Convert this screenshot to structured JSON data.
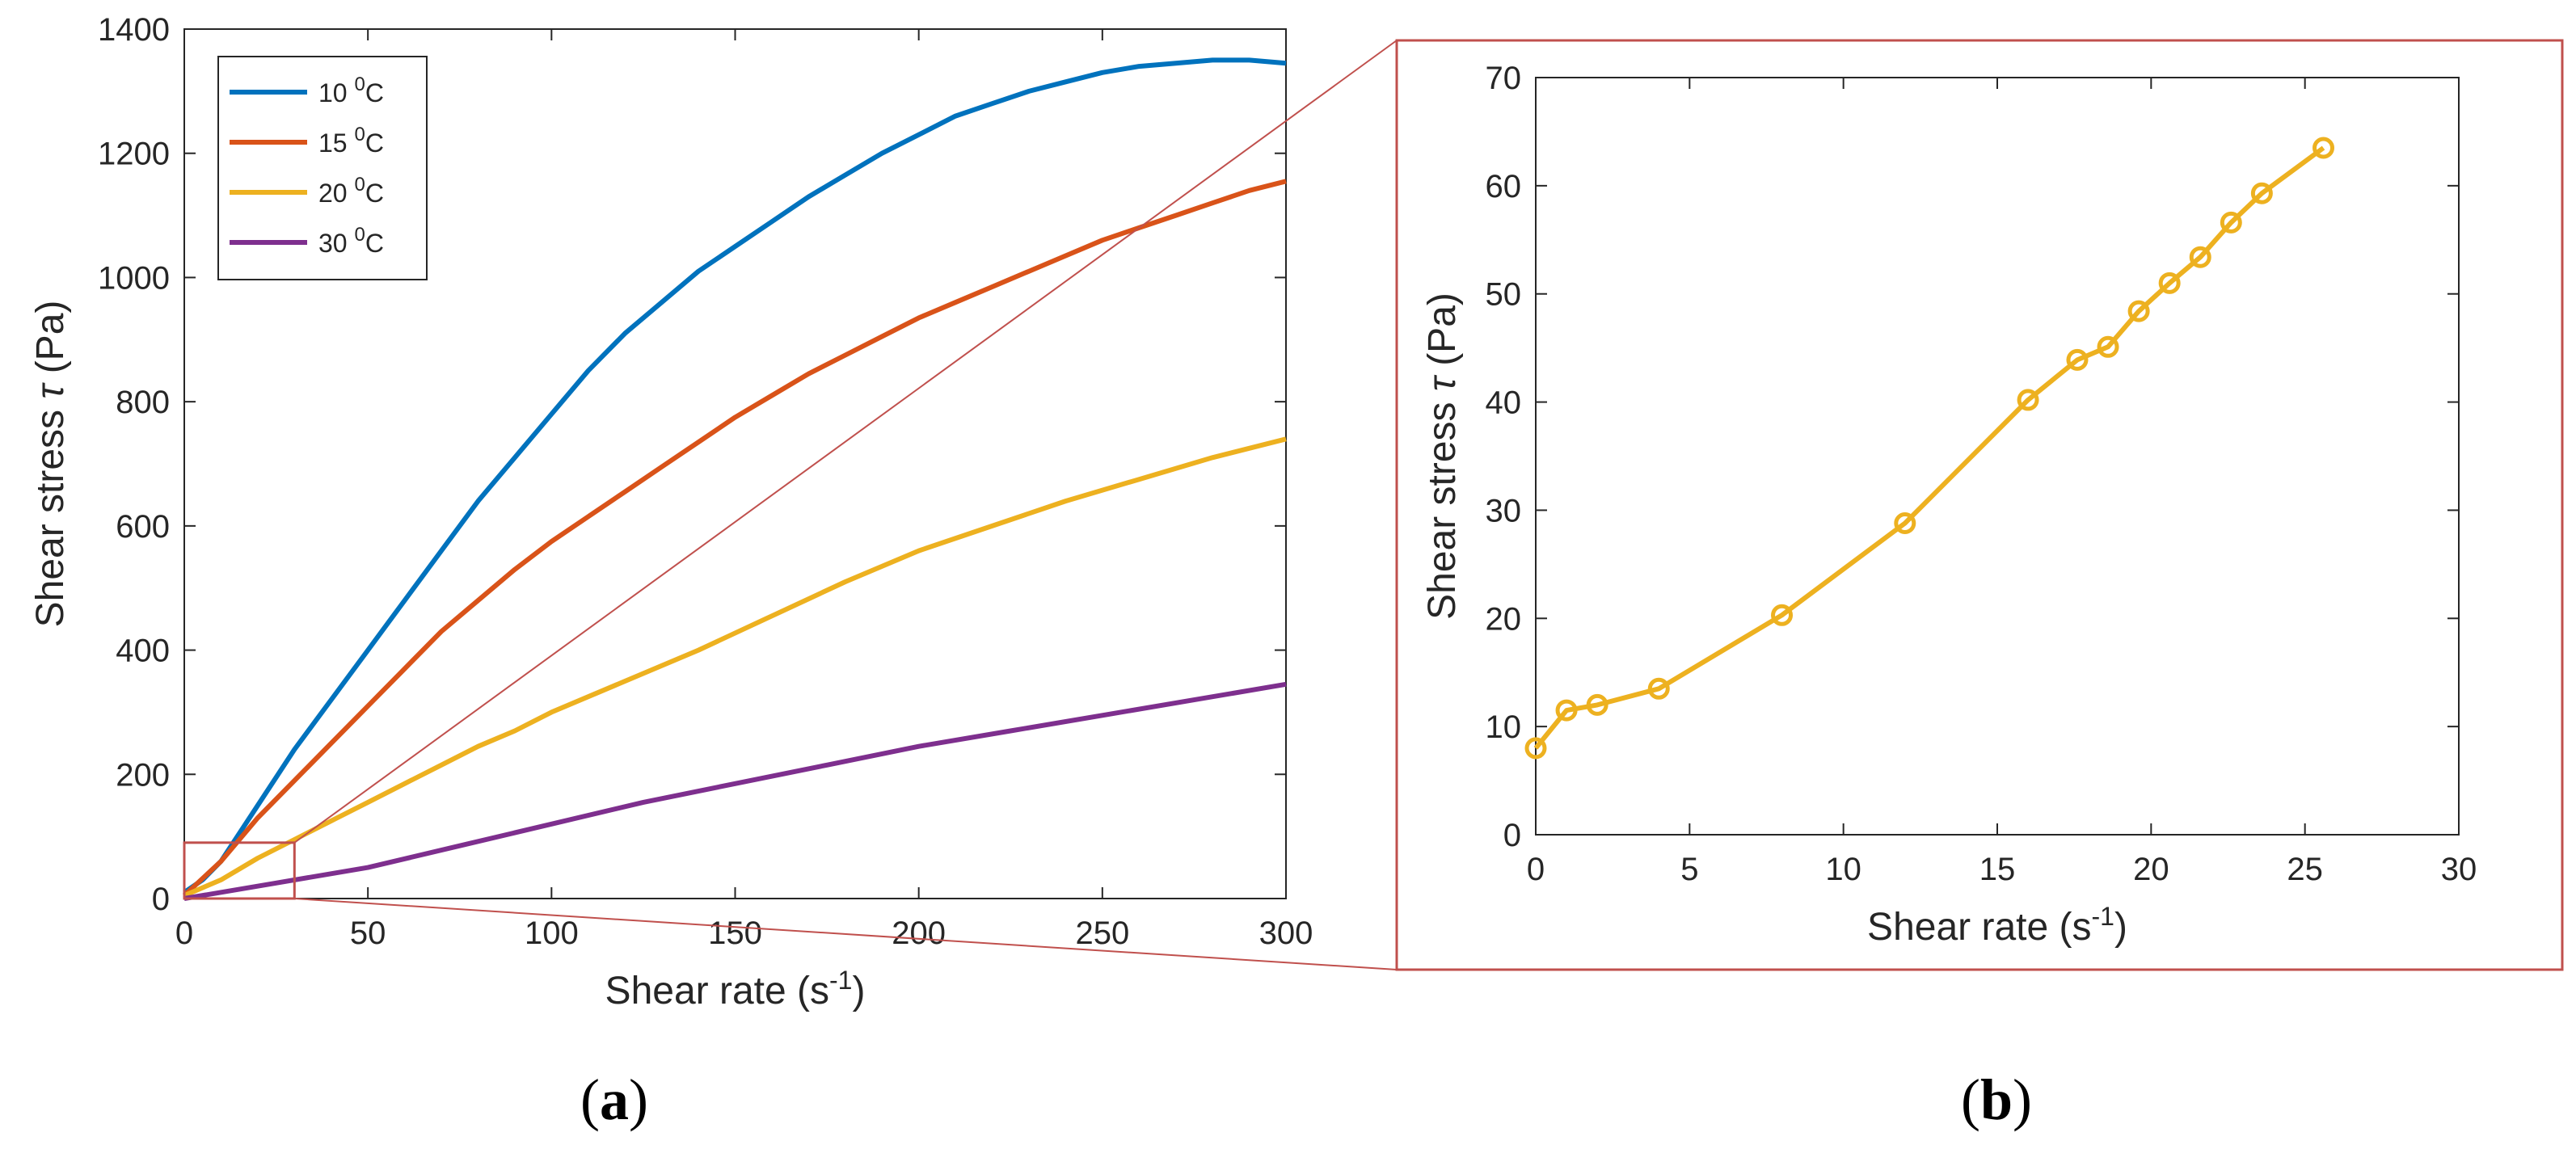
{
  "colors": {
    "series_10c": "#0072BD",
    "series_15c": "#D95319",
    "series_20c": "#EDB120",
    "series_30c": "#7E2F8E",
    "zoom": "#C0504D",
    "axis": "#262626"
  },
  "panel_labels": {
    "a": {
      "open": "(",
      "letter": "a",
      "close": ")"
    },
    "b": {
      "open": "(",
      "letter": "b",
      "close": ")"
    }
  },
  "chart_data": [
    {
      "id": "a",
      "type": "line",
      "xlabel": {
        "main": "Shear rate (s",
        "sup": "-1",
        "end": ")"
      },
      "ylabel": {
        "main": "Shear stress ",
        "sym": "τ",
        "end": " (Pa)"
      },
      "xlim": [
        0,
        300
      ],
      "ylim": [
        0,
        1400
      ],
      "xticks": [
        "0",
        "50",
        "100",
        "150",
        "200",
        "250",
        "300"
      ],
      "yticks": [
        "0",
        "200",
        "400",
        "600",
        "800",
        "1000",
        "1200",
        "1400"
      ],
      "grid": false,
      "legend_position": "top-left",
      "zoom_region": {
        "x": [
          0,
          30
        ],
        "y": [
          0,
          90
        ]
      },
      "series": [
        {
          "name": "10 °C",
          "label_main": "10 ",
          "label_sup": "0",
          "label_end": "C",
          "color_key": "series_10c",
          "x": [
            0,
            5,
            10,
            20,
            30,
            40,
            50,
            60,
            70,
            80,
            90,
            100,
            110,
            120,
            130,
            140,
            150,
            160,
            170,
            180,
            190,
            200,
            210,
            220,
            230,
            240,
            250,
            260,
            270,
            280,
            290,
            300
          ],
          "y": [
            10,
            30,
            60,
            150,
            240,
            320,
            400,
            480,
            560,
            640,
            710,
            780,
            850,
            910,
            960,
            1010,
            1050,
            1090,
            1130,
            1165,
            1200,
            1230,
            1260,
            1280,
            1300,
            1315,
            1330,
            1340,
            1345,
            1350,
            1350,
            1345
          ]
        },
        {
          "name": "15 °C",
          "label_main": "15 ",
          "label_sup": "0",
          "label_end": "C",
          "color_key": "series_15c",
          "x": [
            0,
            10,
            20,
            30,
            40,
            50,
            60,
            70,
            80,
            90,
            100,
            110,
            120,
            130,
            140,
            150,
            160,
            170,
            180,
            190,
            200,
            210,
            220,
            230,
            240,
            250,
            260,
            270,
            280,
            290,
            300
          ],
          "y": [
            5,
            60,
            130,
            190,
            250,
            310,
            370,
            430,
            480,
            530,
            575,
            615,
            655,
            695,
            735,
            775,
            810,
            845,
            875,
            905,
            935,
            960,
            985,
            1010,
            1035,
            1060,
            1080,
            1100,
            1120,
            1140,
            1155
          ]
        },
        {
          "name": "20 °C",
          "label_main": "20 ",
          "label_sup": "0",
          "label_end": "C",
          "color_key": "series_20c",
          "x": [
            0,
            10,
            20,
            30,
            40,
            50,
            60,
            70,
            80,
            90,
            100,
            120,
            140,
            160,
            180,
            200,
            220,
            240,
            260,
            280,
            300
          ],
          "y": [
            5,
            30,
            65,
            95,
            125,
            155,
            185,
            215,
            245,
            270,
            300,
            350,
            400,
            455,
            510,
            560,
            600,
            640,
            675,
            710,
            740
          ]
        },
        {
          "name": "30 °C",
          "label_main": "30 ",
          "label_sup": "0",
          "label_end": "C",
          "color_key": "series_30c",
          "x": [
            0,
            25,
            50,
            75,
            100,
            125,
            150,
            175,
            200,
            225,
            250,
            275,
            300
          ],
          "y": [
            0,
            25,
            50,
            85,
            120,
            155,
            185,
            215,
            245,
            270,
            295,
            320,
            345
          ]
        }
      ]
    },
    {
      "id": "b",
      "type": "line",
      "xlabel": {
        "main": "Shear rate (s",
        "sup": "-1",
        "end": ")"
      },
      "ylabel": {
        "main": "Shear stress ",
        "sym": "τ",
        "end": " (Pa)"
      },
      "xlim": [
        0,
        30
      ],
      "ylim": [
        0,
        70
      ],
      "xticks": [
        "0",
        "5",
        "10",
        "15",
        "20",
        "25",
        "30"
      ],
      "yticks": [
        "0",
        "10",
        "20",
        "30",
        "40",
        "50",
        "60",
        "70"
      ],
      "grid": false,
      "series": [
        {
          "name": "20 °C",
          "color_key": "series_20c",
          "marker": "circle",
          "x": [
            0,
            1,
            2,
            4,
            8,
            12,
            16,
            17.6,
            18.6,
            19.6,
            20.6,
            21.6,
            22.6,
            23.6,
            25.6
          ],
          "y": [
            8,
            11.5,
            12,
            13.5,
            20.3,
            28.8,
            40.2,
            43.9,
            45.1,
            48.4,
            51.0,
            53.4,
            56.6,
            59.3,
            63.5
          ]
        }
      ]
    }
  ]
}
